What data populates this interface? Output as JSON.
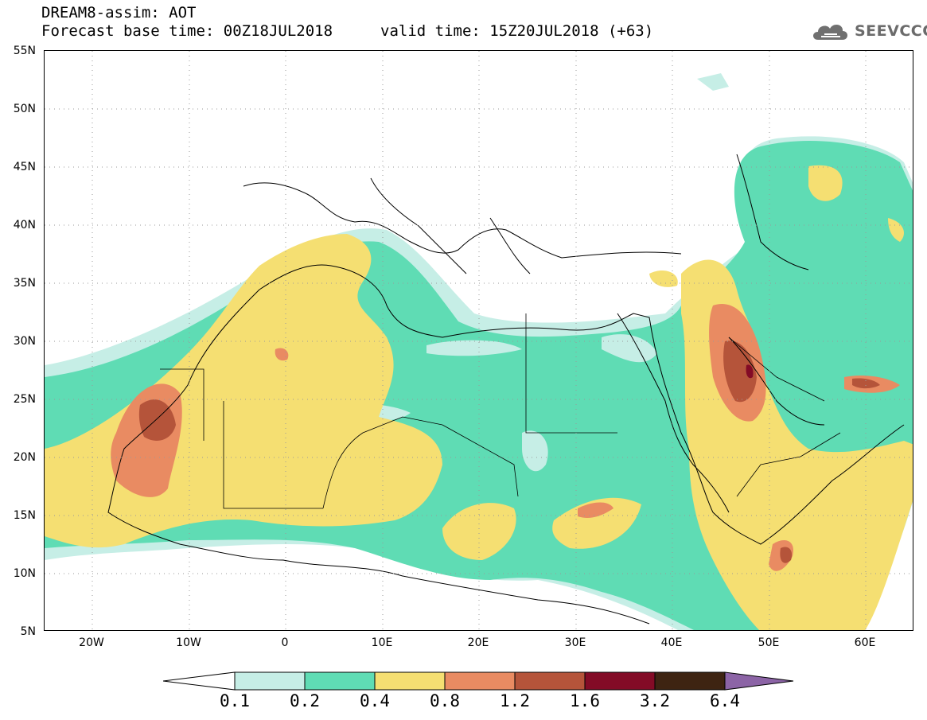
{
  "header": {
    "title": "DREAM8-assim: AOT",
    "base_time": "Forecast base time: 00Z18JUL2018",
    "valid_time": "valid time: 15Z20JUL2018 (+63)"
  },
  "logo": {
    "text": "SEEVCCC",
    "icon": "cloud-icon"
  },
  "map": {
    "lat_labels": [
      "55N",
      "50N",
      "45N",
      "40N",
      "35N",
      "30N",
      "25N",
      "20N",
      "15N",
      "10N",
      "5N"
    ],
    "lon_labels": [
      "20W",
      "10W",
      "0",
      "10E",
      "20E",
      "30E",
      "40E",
      "50E",
      "60E"
    ],
    "lon_range": [
      -25,
      65
    ],
    "lat_range": [
      5,
      55
    ],
    "grid": "dotted"
  },
  "legend": {
    "levels": [
      "0.1",
      "0.2",
      "0.4",
      "0.8",
      "1.2",
      "1.6",
      "3.2",
      "6.4"
    ],
    "colors": [
      "#c6eee6",
      "#5fdcb4",
      "#f5df72",
      "#e98b62",
      "#b5543a",
      "#830b26",
      "#3e2412",
      "#8c64a6"
    ],
    "low_end_color": "#ffffff"
  }
}
